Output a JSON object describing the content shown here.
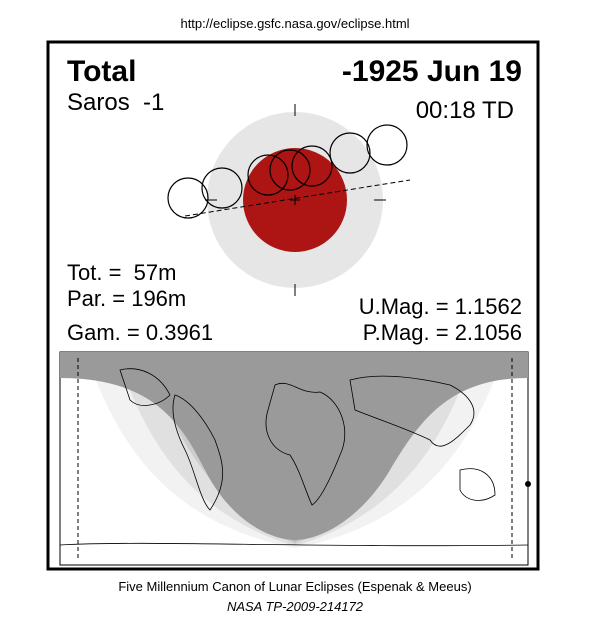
{
  "header": {
    "url": "http://eclipse.gsfc.nasa.gov/eclipse.html"
  },
  "eclipse": {
    "type": "Total",
    "date": "-1925 Jun 19",
    "saros": "Saros  -1",
    "time": "00:18 TD",
    "tot": "Tot. =  57m",
    "par": "Par. = 196m",
    "gam": "Gam. = 0.3961",
    "umag": "U.Mag. = 1.1562",
    "pmag": "P.Mag. = 2.1056"
  },
  "footer": {
    "line1": "Five Millennium Canon of Lunar Eclipses (Espenak & Meeus)",
    "line2": "NASA TP-2009-214172"
  }
}
